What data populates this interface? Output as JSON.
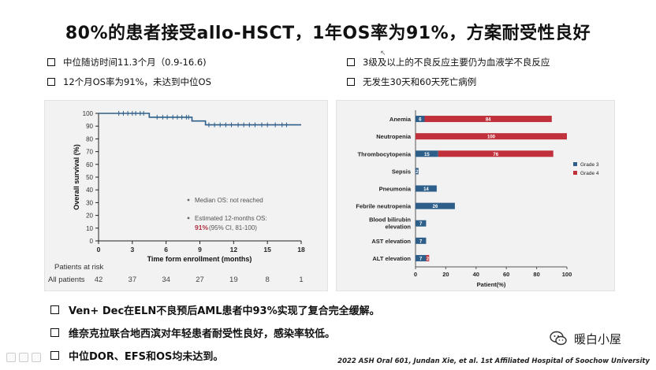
{
  "title": "80%的患者接受allo-HSCT，1年OS率为91%，方案耐受性良好",
  "bullets_left": [
    "中位随访时间11.3个月（0.9-16.6)",
    "12个月OS率为91%，未达到中位OS"
  ],
  "bullets_right": [
    "3级及以上的不良反应主要仍为血液学不良反应",
    "无发生30天和60天死亡病例"
  ],
  "bottom_bullets": [
    "Ven+ Dec在ELN不良预后AML患者中93%实现了复合完全缓解。",
    "维奈克拉联合地西滨对年轻患者耐受性良好，感染率较低。",
    "中位DOR、EFS和OS均未达到。"
  ],
  "citation": "2022 ASH Oral 601, Jundan Xie, et al. 1st Affiliated Hospital of Soochow University",
  "watermark": "暖白小屋",
  "chart_data": [
    {
      "type": "line",
      "xlabel": "Time form enrollment (months)",
      "ylabel": "Overall survival (%)",
      "xlim": [
        0,
        18
      ],
      "ylim": [
        0,
        100
      ],
      "xticks": [
        0,
        3,
        6,
        9,
        12,
        15,
        18
      ],
      "yticks": [
        0,
        10,
        20,
        30,
        40,
        50,
        60,
        70,
        80,
        90,
        100
      ],
      "step_x": [
        0,
        4.5,
        4.5,
        8.3,
        8.3,
        9.5,
        9.5,
        18
      ],
      "step_y": [
        100,
        100,
        97,
        97,
        94,
        94,
        91,
        91
      ],
      "censor_x": [
        1.8,
        2.2,
        2.6,
        3.0,
        3.3,
        3.7,
        4.0,
        5.2,
        5.7,
        6.1,
        6.6,
        7.0,
        7.4,
        7.8,
        8.0,
        9.8,
        10.3,
        10.8,
        11.3,
        11.8,
        12.4,
        12.9,
        13.4,
        13.9,
        14.5,
        15.0,
        15.7,
        16.3,
        16.7
      ],
      "grid": false,
      "legend_text": [
        "Median OS: not reached",
        "Estimated 12-months OS:"
      ],
      "os_value": "91%",
      "os_ci": "(95% CI, 81-100)",
      "risk_title": "Patients at risk",
      "risk_row_label": "All patients",
      "at_risk": [
        42,
        37,
        34,
        27,
        19,
        8,
        1
      ],
      "color": "#2e5f8a"
    },
    {
      "type": "bar",
      "orientation": "horizontal",
      "stacked": true,
      "categories": [
        "Anemia",
        "Neutropenia",
        "Thrombocytopenia",
        "Sepsis",
        "Pneumonia",
        "Febrile neutropenia",
        "Blood bilirubin elevation",
        "AST elevation",
        "ALT elevation"
      ],
      "series": [
        {
          "name": "Grade 3",
          "color": "#2e5f8a",
          "values": [
            6,
            0,
            15,
            2,
            14,
            26,
            7,
            7,
            7
          ]
        },
        {
          "name": "Grade 4",
          "color": "#c0313b",
          "values": [
            84,
            100,
            76,
            0,
            0,
            0,
            0,
            0,
            2
          ]
        }
      ],
      "series_labels": [
        [
          "6",
          "",
          "15",
          "2",
          "14",
          "26",
          "7",
          "7",
          "7"
        ],
        [
          "84",
          "100",
          "76",
          "",
          "",
          "",
          "",
          "",
          "2"
        ]
      ],
      "xlabel": "Patient(%)",
      "xlim": [
        0,
        100
      ],
      "xticks": [
        0,
        20,
        40,
        60,
        80,
        100
      ],
      "legend_position": "right"
    }
  ]
}
